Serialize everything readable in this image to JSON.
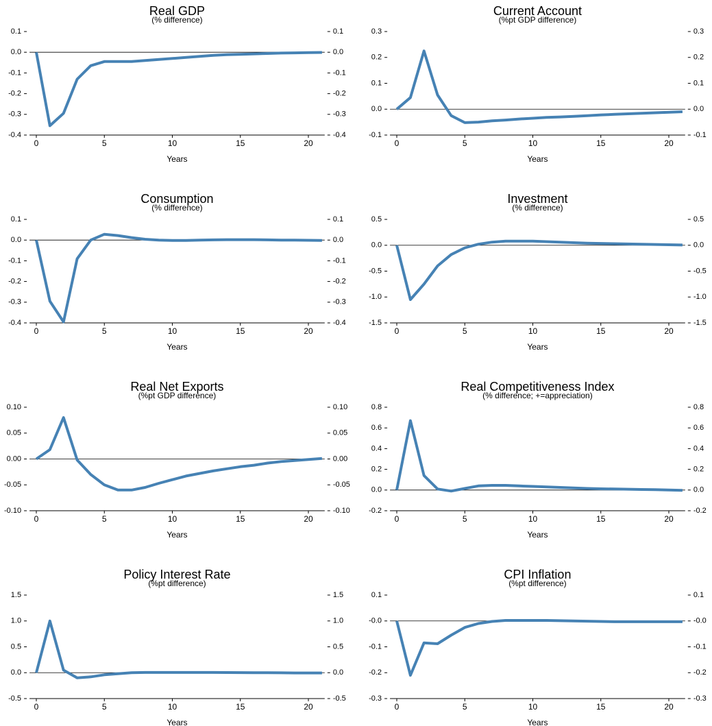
{
  "chart_data": [
    {
      "type": "line",
      "title": "Real GDP",
      "subtitle": "(% difference)",
      "xlabel": "Years",
      "x": [
        0,
        1,
        2,
        3,
        4,
        5,
        6,
        7,
        8,
        9,
        10,
        11,
        12,
        13,
        14,
        15,
        16,
        17,
        18,
        19,
        20,
        21
      ],
      "values": [
        0,
        -0.355,
        -0.295,
        -0.13,
        -0.065,
        -0.045,
        -0.045,
        -0.045,
        -0.04,
        -0.035,
        -0.03,
        -0.025,
        -0.02,
        -0.015,
        -0.012,
        -0.01,
        -0.008,
        -0.006,
        -0.004,
        -0.003,
        -0.002,
        -0.001
      ],
      "color": "#4682b4",
      "xlim": [
        -0.5,
        21.2
      ],
      "xticks": [
        0,
        5,
        10,
        15,
        20
      ],
      "ylim": [
        -0.4,
        0.1
      ],
      "yticks": [
        0.1,
        {
          "value": 0,
          "label": "0.0"
        },
        -0.1,
        -0.2,
        -0.3,
        -0.4
      ]
    },
    {
      "type": "line",
      "title": "Current Account",
      "subtitle": "(%pt GDP difference)",
      "xlabel": "Years",
      "x": [
        0,
        1,
        2,
        3,
        4,
        5,
        6,
        7,
        8,
        9,
        10,
        11,
        12,
        13,
        14,
        15,
        16,
        17,
        18,
        19,
        20,
        21
      ],
      "values": [
        0,
        0.045,
        0.225,
        0.055,
        -0.025,
        -0.052,
        -0.05,
        -0.045,
        -0.042,
        -0.038,
        -0.035,
        -0.032,
        -0.03,
        -0.028,
        -0.025,
        -0.022,
        -0.02,
        -0.018,
        -0.016,
        -0.014,
        -0.012,
        -0.01
      ],
      "color": "#4682b4",
      "xlim": [
        -0.5,
        21.2
      ],
      "xticks": [
        0,
        5,
        10,
        15,
        20
      ],
      "ylim": [
        -0.1,
        0.3
      ],
      "yticks": [
        0.3,
        0.2,
        0.1,
        {
          "value": 0,
          "label": "0.0"
        },
        -0.1
      ]
    },
    {
      "type": "line",
      "title": "Consumption",
      "subtitle": "(% difference)",
      "xlabel": "Years",
      "x": [
        0,
        1,
        2,
        3,
        4,
        5,
        6,
        7,
        8,
        9,
        10,
        11,
        12,
        13,
        14,
        15,
        16,
        17,
        18,
        19,
        20,
        21
      ],
      "values": [
        0,
        -0.295,
        -0.395,
        -0.09,
        0,
        0.028,
        0.022,
        0.012,
        0.004,
        0,
        -0.002,
        -0.002,
        0,
        0.001,
        0.002,
        0.002,
        0.002,
        0.001,
        0,
        0,
        -0.001,
        -0.002
      ],
      "color": "#4682b4",
      "xlim": [
        -0.5,
        21.2
      ],
      "xticks": [
        0,
        5,
        10,
        15,
        20
      ],
      "ylim": [
        -0.4,
        0.1
      ],
      "yticks": [
        0.1,
        {
          "value": 0,
          "label": "0.0"
        },
        -0.1,
        -0.2,
        -0.3,
        -0.4
      ]
    },
    {
      "type": "line",
      "title": "Investment",
      "subtitle": "(% difference)",
      "xlabel": "Years",
      "x": [
        0,
        1,
        2,
        3,
        4,
        5,
        6,
        7,
        8,
        9,
        10,
        11,
        12,
        13,
        14,
        15,
        16,
        17,
        18,
        19,
        20,
        21
      ],
      "values": [
        0,
        -1.05,
        -0.75,
        -0.4,
        -0.18,
        -0.05,
        0.02,
        0.06,
        0.08,
        0.08,
        0.08,
        0.07,
        0.06,
        0.05,
        0.04,
        0.035,
        0.03,
        0.025,
        0.02,
        0.015,
        0.01,
        0.005
      ],
      "color": "#4682b4",
      "xlim": [
        -0.5,
        21.2
      ],
      "xticks": [
        0,
        5,
        10,
        15,
        20
      ],
      "ylim": [
        -1.5,
        0.5
      ],
      "yticks": [
        0.5,
        {
          "value": 0,
          "label": "0.0"
        },
        -0.5,
        {
          "value": -1,
          "label": "-1.0"
        },
        -1.5
      ]
    },
    {
      "type": "line",
      "title": "Real Net Exports",
      "subtitle": "(%pt GDP difference)",
      "xlabel": "Years",
      "x": [
        0,
        1,
        2,
        3,
        4,
        5,
        6,
        7,
        8,
        9,
        10,
        11,
        12,
        13,
        14,
        15,
        16,
        17,
        18,
        19,
        20,
        21
      ],
      "values": [
        0,
        0.018,
        0.08,
        -0.002,
        -0.03,
        -0.05,
        -0.06,
        -0.06,
        -0.055,
        -0.047,
        -0.04,
        -0.033,
        -0.028,
        -0.023,
        -0.019,
        -0.015,
        -0.012,
        -0.008,
        -0.005,
        -0.003,
        -0.001,
        0.001
      ],
      "color": "#4682b4",
      "xlim": [
        -0.5,
        21.2
      ],
      "xticks": [
        0,
        5,
        10,
        15,
        20
      ],
      "ylim": [
        -0.1,
        0.1
      ],
      "yticks": [
        {
          "value": 0.1,
          "label": "0.10"
        },
        0.05,
        {
          "value": 0,
          "label": "0.00"
        },
        -0.05,
        {
          "value": -0.1,
          "label": "-0.10"
        }
      ]
    },
    {
      "type": "line",
      "title": "Real Competitiveness Index",
      "subtitle": "(% difference; +=appreciation)",
      "xlabel": "Years",
      "x": [
        0,
        1,
        2,
        3,
        4,
        5,
        6,
        7,
        8,
        9,
        10,
        11,
        12,
        13,
        14,
        15,
        16,
        17,
        18,
        19,
        20,
        21
      ],
      "values": [
        0,
        0.67,
        0.14,
        0.01,
        -0.01,
        0.015,
        0.04,
        0.045,
        0.045,
        0.04,
        0.035,
        0.03,
        0.025,
        0.02,
        0.015,
        0.012,
        0.01,
        0.008,
        0.005,
        0.003,
        0,
        -0.003
      ],
      "color": "#4682b4",
      "xlim": [
        -0.5,
        21.2
      ],
      "xticks": [
        0,
        5,
        10,
        15,
        20
      ],
      "ylim": [
        -0.2,
        0.8
      ],
      "yticks": [
        0.8,
        0.6,
        0.4,
        0.2,
        {
          "value": 0,
          "label": "0.0"
        },
        -0.2
      ]
    },
    {
      "type": "line",
      "title": "Policy Interest Rate",
      "subtitle": "(%pt difference)",
      "xlabel": "Years",
      "x": [
        0,
        1,
        2,
        3,
        4,
        5,
        6,
        7,
        8,
        9,
        10,
        11,
        12,
        13,
        14,
        15,
        16,
        17,
        18,
        19,
        20,
        21
      ],
      "values": [
        0,
        1.0,
        0.05,
        -0.1,
        -0.08,
        -0.04,
        -0.02,
        0,
        0.005,
        0.005,
        0.005,
        0.005,
        0.005,
        0.005,
        0.003,
        0.002,
        0,
        0,
        -0.002,
        -0.004,
        -0.005,
        -0.005
      ],
      "color": "#4682b4",
      "xlim": [
        -0.5,
        21.2
      ],
      "xticks": [
        0,
        5,
        10,
        15,
        20
      ],
      "ylim": [
        -0.5,
        1.5
      ],
      "yticks": [
        1.5,
        {
          "value": 1,
          "label": "1.0"
        },
        0.5,
        {
          "value": 0,
          "label": "0.0"
        },
        -0.5
      ]
    },
    {
      "type": "line",
      "title": "CPI Inflation",
      "subtitle": "(%pt difference)",
      "xlabel": "Years",
      "x": [
        0,
        1,
        2,
        3,
        4,
        5,
        6,
        7,
        8,
        9,
        10,
        11,
        12,
        13,
        14,
        15,
        16,
        17,
        18,
        19,
        20,
        21
      ],
      "values": [
        0,
        -0.21,
        -0.085,
        -0.088,
        -0.055,
        -0.025,
        -0.01,
        -0.002,
        0.002,
        0.002,
        0.002,
        0.002,
        0.001,
        0,
        -0.001,
        -0.002,
        -0.003,
        -0.003,
        -0.003,
        -0.003,
        -0.003,
        -0.003
      ],
      "color": "#4682b4",
      "xlim": [
        -0.5,
        21.2
      ],
      "xticks": [
        0,
        5,
        10,
        15,
        20
      ],
      "ylim": [
        -0.3,
        0.1
      ],
      "yticks": [
        0.1,
        {
          "value": 0,
          "label": "-0.0"
        },
        -0.1,
        -0.2,
        -0.3
      ]
    }
  ]
}
